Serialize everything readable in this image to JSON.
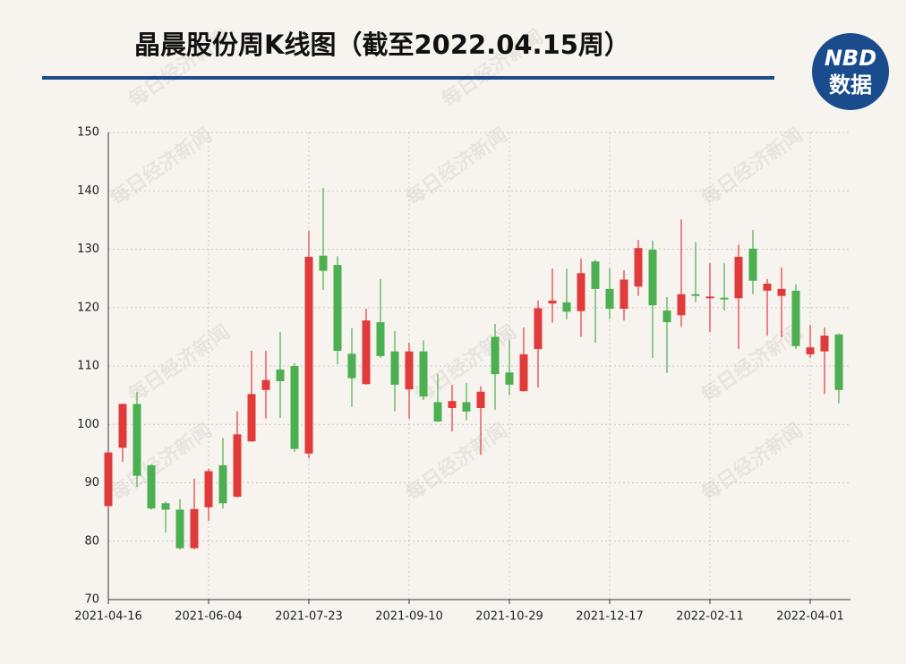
{
  "chart_data": {
    "type": "candlestick",
    "title": "晶晨股份周K线图（截至2022.04.15周）",
    "logo": [
      "NBD",
      "数据"
    ],
    "watermark": "每日经济新闻",
    "categories": [
      "2021-04-16",
      null,
      null,
      null,
      null,
      null,
      null,
      "2021-06-04",
      null,
      null,
      null,
      null,
      null,
      null,
      "2021-07-23",
      null,
      null,
      null,
      null,
      null,
      null,
      "2021-09-10",
      null,
      null,
      null,
      null,
      null,
      null,
      "2021-10-29",
      null,
      null,
      null,
      null,
      null,
      null,
      "2021-12-17",
      null,
      null,
      null,
      null,
      null,
      null,
      "2022-02-11",
      null,
      null,
      null,
      null,
      null,
      null,
      "2022-04-01",
      null,
      null
    ],
    "open": [
      86,
      96,
      103.5,
      93,
      86.5,
      85.4,
      78.8,
      85.8,
      93,
      87.6,
      97.1,
      105.9,
      109.4,
      110,
      95,
      128.9,
      127.3,
      112.1,
      106.9,
      117.5,
      112.5,
      106,
      112.5,
      103.8,
      102.8,
      103.8,
      102.8,
      115,
      108.9,
      105.7,
      112.9,
      120.7,
      120.9,
      119.4,
      127.9,
      123.2,
      119.8,
      123.6,
      129.9,
      119.5,
      118.7,
      122.3,
      121.6,
      121.7,
      121.6,
      130.1,
      122.9,
      122,
      122.9,
      112,
      112.5,
      115.4
    ],
    "high": [
      95.3,
      103.6,
      105.6,
      93.2,
      86.8,
      87.2,
      90.7,
      92.4,
      97.7,
      102.3,
      112.6,
      112.6,
      115.8,
      110.5,
      133.2,
      140.5,
      128.8,
      116.5,
      119.8,
      124.9,
      116,
      114,
      114.4,
      108.6,
      106.8,
      107.1,
      106.5,
      117.2,
      114.4,
      116.6,
      121.2,
      126.7,
      126.7,
      128.4,
      128.2,
      126.7,
      126.4,
      131.6,
      131.5,
      121.8,
      135.1,
      131.2,
      127.6,
      127.6,
      130.8,
      133.3,
      124.9,
      126.9,
      124,
      117,
      116.6,
      115.6
    ],
    "low": [
      85.6,
      93.6,
      89.3,
      85.4,
      81.5,
      78.6,
      78.6,
      83.5,
      85.6,
      87.5,
      97,
      101,
      101.1,
      95.3,
      94.2,
      123,
      110.3,
      103,
      106.8,
      111.4,
      102.2,
      101,
      104.2,
      100.4,
      98.8,
      100.7,
      94.8,
      102.5,
      105,
      105.6,
      106.3,
      117.4,
      118,
      115,
      114,
      118,
      117.8,
      122,
      111.4,
      108.8,
      116.7,
      120.9,
      115.8,
      119.5,
      112.9,
      122.3,
      115.2,
      114.9,
      112.9,
      111.4,
      105.2,
      103.6
    ],
    "close": [
      95.2,
      103.5,
      91.2,
      85.6,
      85.4,
      78.8,
      85.5,
      92,
      86.5,
      98.3,
      105.2,
      107.6,
      107.4,
      95.8,
      128.7,
      126.3,
      112.6,
      107.9,
      117.8,
      111.7,
      106.8,
      112.5,
      104.8,
      100.5,
      104,
      102.2,
      105.6,
      108.6,
      106.8,
      112,
      119.9,
      121.2,
      119.3,
      125.9,
      123.2,
      119.8,
      124.8,
      130.2,
      120.4,
      117.5,
      122.3,
      122,
      121.9,
      121.4,
      128.7,
      124.6,
      124.1,
      123.2,
      113.4,
      113.2,
      115.2,
      105.9
    ],
    "up_color": "#e03a3a",
    "down_color": "#4caf50",
    "ylim": [
      70,
      150
    ],
    "yticks": [
      70,
      80,
      90,
      100,
      110,
      120,
      130,
      140,
      150
    ],
    "grid": true
  }
}
